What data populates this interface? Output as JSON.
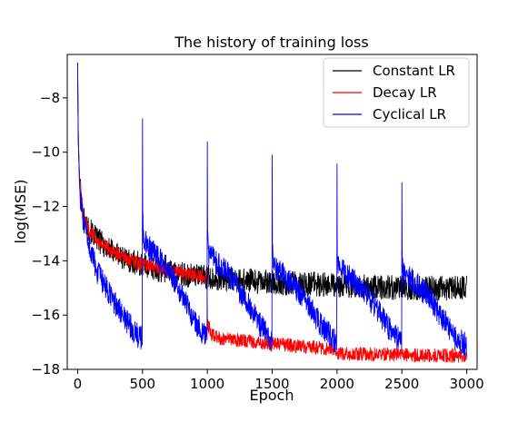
{
  "chart_data": {
    "type": "line",
    "title": "The history of training loss",
    "xlabel": "Epoch",
    "ylabel": "log(MSE)",
    "xlim": [
      -80,
      3080
    ],
    "ylim": [
      -18.0,
      -6.4
    ],
    "xticks": [
      0,
      500,
      1000,
      1500,
      2000,
      2500,
      3000
    ],
    "xtick_labels": [
      "0",
      "500",
      "1000",
      "1500",
      "2000",
      "2500",
      "3000"
    ],
    "yticks": [
      -18,
      -16,
      -14,
      -12,
      -10,
      -8
    ],
    "ytick_labels": [
      "−18",
      "−16",
      "−14",
      "−12",
      "−10",
      "−8"
    ],
    "grid": false,
    "legend_position": "top-right",
    "series": [
      {
        "name": "Constant LR",
        "color": "#000000",
        "x": [
          0,
          5,
          15,
          40,
          80,
          150,
          250,
          400,
          600,
          800,
          1000,
          1200,
          1500,
          1800,
          2000,
          2200,
          2500,
          2800,
          3000
        ],
        "y": [
          -6.7,
          -9.5,
          -11.0,
          -12.3,
          -12.8,
          -13.2,
          -13.6,
          -14.0,
          -14.3,
          -14.5,
          -14.6,
          -14.7,
          -14.8,
          -14.85,
          -14.9,
          -14.95,
          -15.0,
          -15.0,
          -15.0
        ],
        "noise": 0.45
      },
      {
        "name": "Decay LR",
        "color": "#ff0000",
        "x": [
          0,
          5,
          15,
          40,
          80,
          150,
          250,
          400,
          600,
          800,
          999,
          1000,
          1001,
          1030,
          1100,
          1300,
          1500,
          1700,
          1999,
          2000,
          2001,
          2300,
          2600,
          3000
        ],
        "y": [
          -6.7,
          -9.5,
          -11.0,
          -12.3,
          -12.8,
          -13.2,
          -13.6,
          -14.0,
          -14.25,
          -14.45,
          -14.6,
          -16.0,
          -16.3,
          -16.7,
          -16.85,
          -16.95,
          -17.05,
          -17.15,
          -17.25,
          -17.3,
          -17.4,
          -17.45,
          -17.48,
          -17.5
        ],
        "noise": 0.25
      },
      {
        "name": "Cyclical LR",
        "color": "#0000ff",
        "x": [
          0,
          5,
          15,
          40,
          80,
          150,
          250,
          350,
          450,
          499,
          500,
          501,
          505,
          520,
          600,
          700,
          800,
          900,
          999,
          1000,
          1001,
          1005,
          1020,
          1100,
          1200,
          1300,
          1400,
          1499,
          1500,
          1501,
          1505,
          1520,
          1600,
          1700,
          1800,
          1900,
          1999,
          2000,
          2001,
          2005,
          2020,
          2100,
          2200,
          2300,
          2400,
          2499,
          2500,
          2501,
          2505,
          2520,
          2600,
          2700,
          2800,
          2900,
          3000
        ],
        "y": [
          -6.7,
          -9.5,
          -11.3,
          -12.5,
          -13.3,
          -14.4,
          -15.3,
          -16.0,
          -16.7,
          -16.9,
          -8.9,
          -12.0,
          -13.0,
          -13.3,
          -13.8,
          -14.3,
          -15.2,
          -16.2,
          -16.9,
          -9.6,
          -12.8,
          -13.6,
          -13.8,
          -14.2,
          -14.7,
          -15.5,
          -16.3,
          -17.0,
          -9.9,
          -13.5,
          -14.0,
          -14.2,
          -14.6,
          -15.1,
          -15.8,
          -16.5,
          -17.05,
          -10.5,
          -13.6,
          -14.1,
          -14.3,
          -14.6,
          -15.1,
          -15.7,
          -16.5,
          -17.05,
          -10.9,
          -13.8,
          -14.3,
          -14.5,
          -14.8,
          -15.3,
          -16.0,
          -16.8,
          -17.1
        ],
        "noise": 0.45
      }
    ]
  }
}
